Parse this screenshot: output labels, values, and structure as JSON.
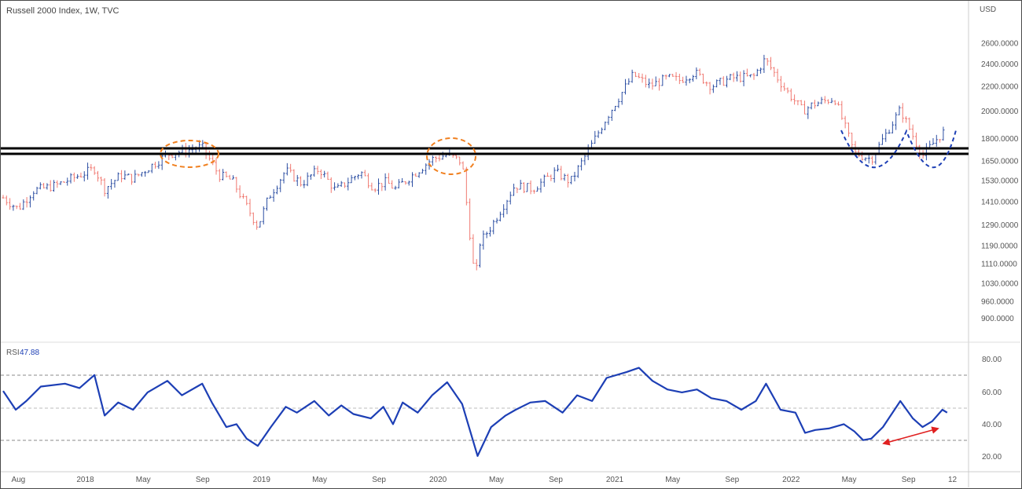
{
  "header": {
    "title": "Russell 2000 Index, 1W, TVC"
  },
  "currency": "USD",
  "rsi_label": "RSI",
  "rsi_value": "47.88",
  "colors": {
    "up": "#2d4fa3",
    "down": "#f07a72",
    "rsi_line": "#1d3fb5",
    "resistance": "#000000",
    "ellipse": "#f08020",
    "pattern": "#1d3fb5",
    "arrow": "#e02020",
    "grid": "#d9d9d9",
    "guide": "#8a8a8a"
  },
  "chart_data": [
    {
      "type": "ohlc",
      "title": "Russell 2000 Index, 1W, TVC",
      "price_ticks": [
        "2600.0000",
        "2400.0000",
        "2200.0000",
        "2000.0000",
        "1800.0000",
        "1650.0000",
        "1530.0000",
        "1410.0000",
        "1290.0000",
        "1190.0000",
        "1110.0000",
        "1030.0000",
        "960.0000",
        "900.0000"
      ],
      "ylim": [
        860,
        2800
      ],
      "y_scale": "log",
      "x_ticks": [
        "Aug",
        "2018",
        "May",
        "Sep",
        "2019",
        "May",
        "Sep",
        "2020",
        "May",
        "Sep",
        "2021",
        "May",
        "Sep",
        "2022",
        "May",
        "Sep",
        "12"
      ],
      "x_tick_dates": [
        "2017-08-01",
        "2018-01-01",
        "2018-05-01",
        "2018-09-01",
        "2019-01-01",
        "2019-05-01",
        "2019-09-01",
        "2020-01-01",
        "2020-05-01",
        "2020-09-01",
        "2021-01-01",
        "2021-05-01",
        "2021-09-01",
        "2022-01-01",
        "2022-05-01",
        "2022-09-01",
        "2022-12-01"
      ],
      "xlim": [
        "2017-07-15",
        "2022-12-31"
      ],
      "series": [
        {
          "x": [
            "2017-07-15",
            "2017-08-15",
            "2017-09-15",
            "2017-11-01",
            "2018-01-20",
            "2018-02-10",
            "2018-03-15",
            "2018-04-10",
            "2018-06-20",
            "2018-08-31",
            "2018-10-05",
            "2018-11-01",
            "2018-12-24",
            "2019-01-15",
            "2019-02-20",
            "2019-03-25",
            "2019-04-30",
            "2019-06-03",
            "2019-07-25",
            "2019-08-20",
            "2019-09-15",
            "2019-10-05",
            "2019-12-20",
            "2020-01-20",
            "2020-02-20",
            "2020-03-18",
            "2020-03-27",
            "2020-04-20",
            "2020-06-08",
            "2020-07-15",
            "2020-08-31",
            "2020-10-01",
            "2020-11-10",
            "2020-12-15",
            "2021-02-08",
            "2021-03-15",
            "2021-04-20",
            "2021-05-15",
            "2021-06-15",
            "2021-07-20",
            "2021-08-31",
            "2021-10-15",
            "2021-11-08",
            "2021-12-15",
            "2022-01-25",
            "2022-02-15",
            "2022-04-01",
            "2022-05-12",
            "2022-06-16",
            "2022-08-15",
            "2022-09-30",
            "2022-10-31",
            "2022-11-15"
          ],
          "close": [
            1430,
            1370,
            1470,
            1500,
            1600,
            1480,
            1560,
            1540,
            1690,
            1740,
            1560,
            1530,
            1280,
            1430,
            1590,
            1510,
            1600,
            1470,
            1580,
            1490,
            1520,
            1480,
            1660,
            1690,
            1640,
            1030,
            1200,
            1280,
            1500,
            1480,
            1580,
            1520,
            1730,
            1950,
            2300,
            2200,
            2270,
            2250,
            2320,
            2200,
            2270,
            2280,
            2440,
            2200,
            2000,
            2050,
            2100,
            1700,
            1660,
            2010,
            1680,
            1800,
            1850
          ]
        }
      ]
    },
    {
      "type": "line",
      "title": "RSI",
      "y_ticks": [
        "80.00",
        "60.00",
        "40.00",
        "20.00"
      ],
      "ylim": [
        12,
        88
      ],
      "guide_levels": [
        70,
        50,
        30
      ],
      "series": [
        {
          "name": "RSI",
          "x": [
            "2017-07-15",
            "2017-08-10",
            "2017-09-01",
            "2017-10-01",
            "2017-11-20",
            "2017-12-20",
            "2018-01-20",
            "2018-02-10",
            "2018-03-10",
            "2018-04-10",
            "2018-05-10",
            "2018-06-20",
            "2018-07-20",
            "2018-08-31",
            "2018-09-20",
            "2018-10-20",
            "2018-11-10",
            "2018-12-01",
            "2018-12-24",
            "2019-01-20",
            "2019-02-20",
            "2019-03-15",
            "2019-04-20",
            "2019-05-20",
            "2019-06-15",
            "2019-07-10",
            "2019-08-15",
            "2019-09-10",
            "2019-09-30",
            "2019-10-20",
            "2019-11-20",
            "2019-12-20",
            "2020-01-20",
            "2020-02-20",
            "2020-03-23",
            "2020-04-20",
            "2020-05-20",
            "2020-06-10",
            "2020-07-10",
            "2020-08-10",
            "2020-09-15",
            "2020-10-15",
            "2020-11-15",
            "2020-12-15",
            "2021-01-25",
            "2021-02-20",
            "2021-03-20",
            "2021-04-20",
            "2021-05-20",
            "2021-06-20",
            "2021-07-20",
            "2021-08-20",
            "2021-09-20",
            "2021-10-20",
            "2021-11-10",
            "2021-12-10",
            "2022-01-10",
            "2022-01-30",
            "2022-02-20",
            "2022-03-20",
            "2022-04-20",
            "2022-05-12",
            "2022-05-30",
            "2022-06-16",
            "2022-07-10",
            "2022-08-15",
            "2022-09-10",
            "2022-09-30",
            "2022-10-20",
            "2022-11-10",
            "2022-11-20"
          ],
          "y": [
            63,
            50,
            56,
            66,
            68,
            65,
            74,
            46,
            55,
            50,
            62,
            70,
            60,
            68,
            55,
            38,
            40,
            30,
            25,
            38,
            52,
            48,
            56,
            46,
            53,
            47,
            44,
            52,
            40,
            55,
            48,
            60,
            69,
            54,
            18,
            38,
            46,
            50,
            55,
            56,
            48,
            60,
            56,
            72,
            76,
            79,
            70,
            64,
            62,
            64,
            58,
            56,
            50,
            56,
            68,
            50,
            48,
            34,
            36,
            37,
            40,
            35,
            29,
            30,
            38,
            56,
            44,
            38,
            42,
            50,
            48
          ]
        }
      ],
      "annotations": [
        "arrow 2022-06 30 -> 2022-11 38"
      ]
    }
  ]
}
